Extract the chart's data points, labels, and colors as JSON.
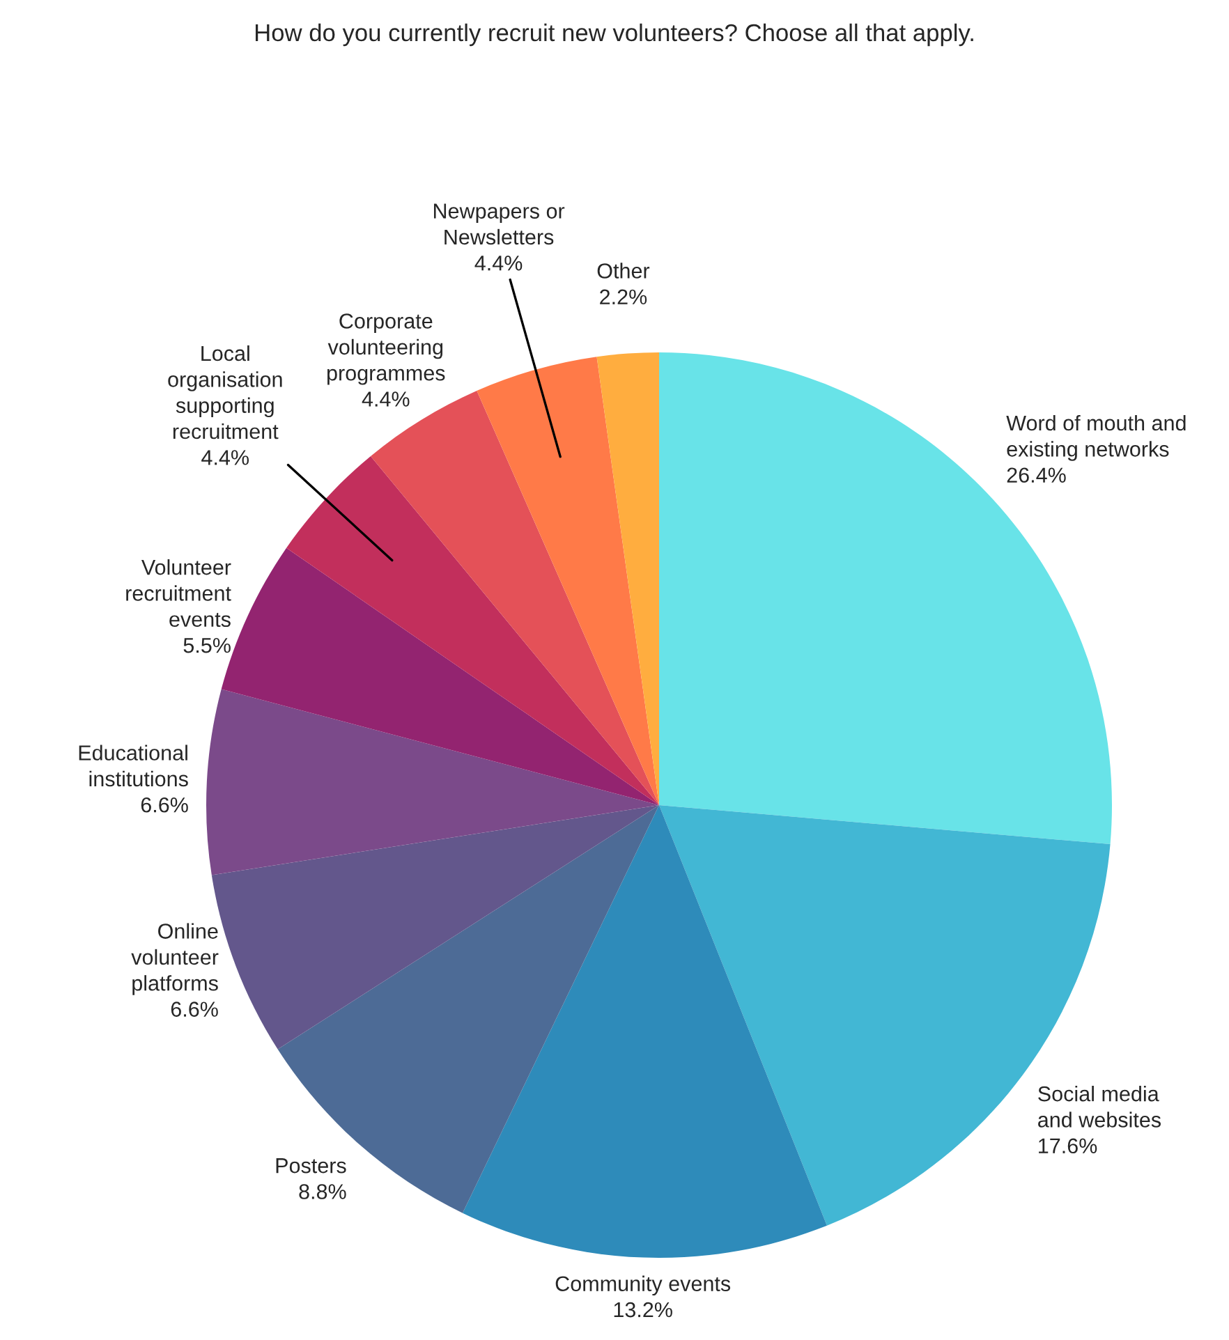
{
  "chart_data": {
    "type": "pie",
    "title": "How do you currently recruit new volunteers? Choose all that apply.",
    "categories": [
      "Word of mouth and\nexisting networks",
      "Social media\nand websites",
      "Community events",
      "Posters",
      "Online\nvolunteer\nplatforms",
      "Educational\ninstitutions",
      "Volunteer\nrecruitment\nevents",
      "Local\norganisation\nsupporting\nrecruitment",
      "Corporate\nvolunteering\nprogrammes",
      "Newpapers or\nNewsletters",
      "Other"
    ],
    "values": [
      26.4,
      17.6,
      13.2,
      8.8,
      6.6,
      6.6,
      5.5,
      4.4,
      4.4,
      4.4,
      2.2
    ],
    "value_labels": [
      "26.4%",
      "17.6%",
      "13.2%",
      "8.8%",
      "6.6%",
      "6.6%",
      "5.5%",
      "4.4%",
      "4.4%",
      "4.4%",
      "2.2%"
    ],
    "colors": [
      "#68e3e8",
      "#42b7d4",
      "#2e8bba",
      "#4d6b96",
      "#63578c",
      "#7b4a8a",
      "#932470",
      "#c22f5c",
      "#e45158",
      "#ff7a48",
      "#ffad3f"
    ]
  }
}
